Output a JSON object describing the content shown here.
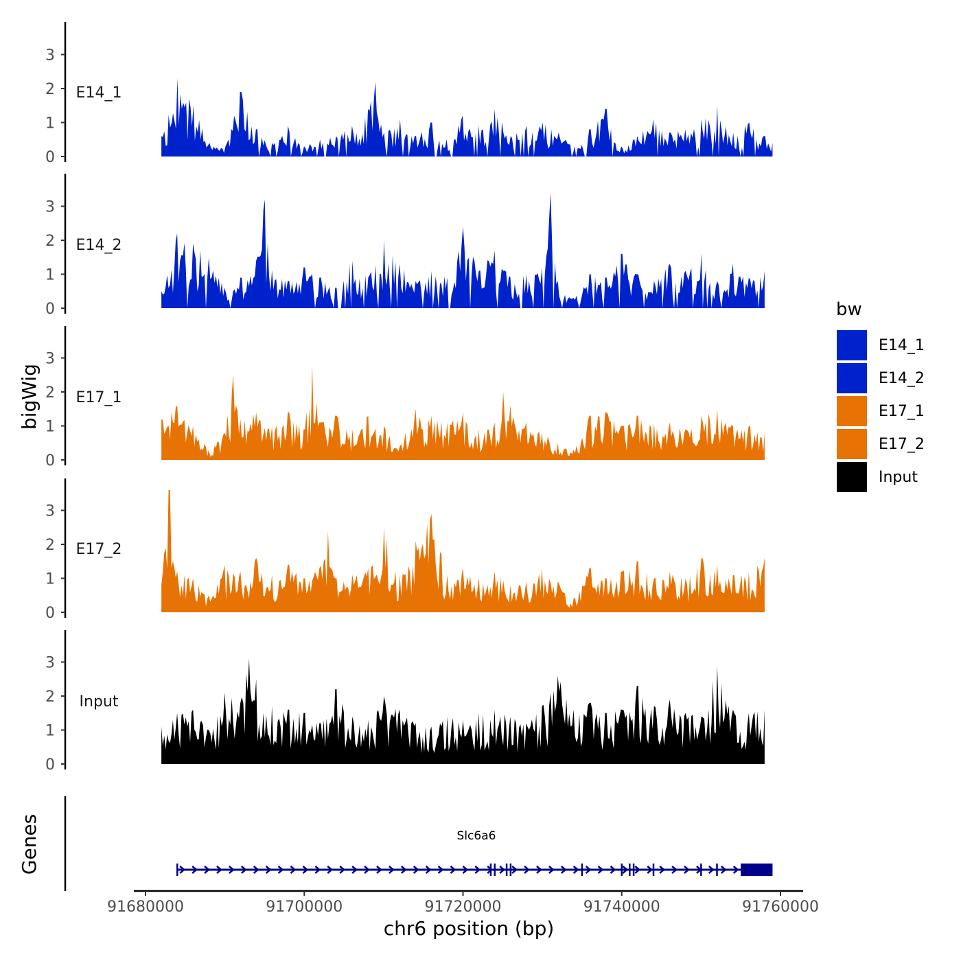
{
  "chart_data": {
    "type": "area",
    "title": "",
    "ylabel": "bigWig",
    "xlabel": "chr6 position (bp)",
    "xlim": [
      91682000,
      91759000
    ],
    "ylim": [
      0,
      4
    ],
    "x_ticks": [
      91680000,
      91700000,
      91720000,
      91740000,
      91760000
    ],
    "x_tick_labels": [
      "91680000",
      "91700000",
      "91720000",
      "91740000",
      "91760000"
    ],
    "y_ticks": [
      0,
      1,
      2,
      3
    ],
    "y_tick_labels": [
      "0",
      "1",
      "2",
      "3"
    ],
    "legend_title": "bw",
    "legend_position": "right",
    "series": [
      {
        "name": "E14_1",
        "color": "#0022CC",
        "x": [
          91682000,
          91684000,
          91686000,
          91688000,
          91690000,
          91692000,
          91694000,
          91696000,
          91698000,
          91700000,
          91702000,
          91704000,
          91706000,
          91708000,
          91709000,
          91710000,
          91712000,
          91714000,
          91716000,
          91718000,
          91720000,
          91722000,
          91724000,
          91726000,
          91728000,
          91730000,
          91732000,
          91734000,
          91736000,
          91738000,
          91740000,
          91742000,
          91744000,
          91746000,
          91748000,
          91750000,
          91752000,
          91754000,
          91756000,
          91758000,
          91759000
        ],
        "values": [
          0.6,
          2.3,
          1.5,
          0.4,
          0.3,
          1.9,
          0.8,
          0.4,
          0.9,
          0.3,
          0.5,
          0.6,
          0.9,
          1.4,
          2.2,
          0.7,
          1.1,
          0.6,
          1.0,
          0.5,
          1.2,
          0.9,
          1.4,
          0.6,
          0.9,
          1.0,
          0.7,
          0.3,
          0.8,
          1.4,
          0.3,
          0.6,
          1.1,
          0.7,
          0.8,
          1.1,
          1.5,
          0.7,
          1.0,
          0.6,
          0.4
        ]
      },
      {
        "name": "E14_2",
        "color": "#0022CC",
        "x": [
          91682000,
          91684000,
          91686000,
          91688000,
          91690000,
          91692000,
          91694000,
          91695000,
          91696000,
          91698000,
          91700000,
          91702000,
          91704000,
          91706000,
          91708000,
          91710000,
          91712000,
          91714000,
          91716000,
          91718000,
          91720000,
          91722000,
          91724000,
          91726000,
          91728000,
          91730000,
          91731000,
          91732000,
          91734000,
          91736000,
          91738000,
          91740000,
          91742000,
          91744000,
          91746000,
          91748000,
          91750000,
          91752000,
          91754000,
          91756000,
          91758000
        ],
        "values": [
          0.5,
          2.2,
          1.9,
          1.5,
          0.6,
          0.9,
          1.4,
          3.2,
          1.0,
          0.8,
          1.2,
          0.9,
          0.6,
          1.4,
          0.9,
          2.0,
          1.3,
          0.8,
          1.1,
          0.9,
          2.4,
          1.1,
          1.7,
          0.9,
          1.0,
          1.2,
          3.4,
          0.8,
          0.3,
          1.0,
          0.9,
          1.6,
          1.0,
          0.8,
          1.3,
          1.1,
          1.6,
          0.8,
          1.3,
          0.9,
          1.1
        ]
      },
      {
        "name": "E17_1",
        "color": "#E87305",
        "x": [
          91682000,
          91684000,
          91686000,
          91688000,
          91690000,
          91691000,
          91692000,
          91694000,
          91696000,
          91698000,
          91700000,
          91701000,
          91702000,
          91704000,
          91706000,
          91708000,
          91710000,
          91712000,
          91714000,
          91716000,
          91718000,
          91720000,
          91722000,
          91724000,
          91725000,
          91726000,
          91728000,
          91730000,
          91732000,
          91734000,
          91736000,
          91738000,
          91740000,
          91742000,
          91744000,
          91746000,
          91748000,
          91750000,
          91752000,
          91754000,
          91756000,
          91758000
        ],
        "values": [
          1.2,
          1.6,
          1.0,
          0.3,
          0.8,
          2.5,
          1.2,
          1.4,
          1.0,
          1.4,
          0.9,
          2.8,
          1.1,
          1.3,
          0.9,
          1.3,
          1.0,
          0.4,
          1.5,
          1.3,
          1.1,
          1.4,
          0.9,
          1.1,
          2.0,
          1.6,
          1.1,
          0.8,
          0.5,
          0.3,
          1.3,
          1.4,
          1.0,
          1.3,
          1.1,
          1.1,
          0.9,
          1.3,
          1.5,
          1.0,
          1.0,
          0.8
        ]
      },
      {
        "name": "E17_2",
        "color": "#E87305",
        "x": [
          91682000,
          91683000,
          91684000,
          91686000,
          91688000,
          91690000,
          91692000,
          91694000,
          91696000,
          91698000,
          91700000,
          91702000,
          91703000,
          91704000,
          91706000,
          91708000,
          91710000,
          91712000,
          91714000,
          91716000,
          91718000,
          91720000,
          91722000,
          91724000,
          91726000,
          91728000,
          91730000,
          91732000,
          91734000,
          91736000,
          91738000,
          91740000,
          91742000,
          91744000,
          91746000,
          91748000,
          91750000,
          91752000,
          91754000,
          91756000,
          91758000
        ],
        "values": [
          0.8,
          3.6,
          1.2,
          1.0,
          0.5,
          1.4,
          1.2,
          1.6,
          1.1,
          1.4,
          1.0,
          1.3,
          2.4,
          1.0,
          1.1,
          1.3,
          2.5,
          1.1,
          2.1,
          2.9,
          1.1,
          1.3,
          1.0,
          1.2,
          0.8,
          0.9,
          1.3,
          0.9,
          0.4,
          1.3,
          1.0,
          1.2,
          1.5,
          1.0,
          1.2,
          1.0,
          1.6,
          1.4,
          1.1,
          1.2,
          1.6
        ]
      },
      {
        "name": "Input",
        "color": "#000000",
        "x": [
          91682000,
          91684000,
          91686000,
          91688000,
          91690000,
          91692000,
          91693000,
          91694000,
          91696000,
          91698000,
          91700000,
          91702000,
          91704000,
          91706000,
          91708000,
          91710000,
          91712000,
          91714000,
          91716000,
          91718000,
          91720000,
          91722000,
          91724000,
          91726000,
          91728000,
          91730000,
          91732000,
          91734000,
          91736000,
          91738000,
          91740000,
          91742000,
          91744000,
          91746000,
          91748000,
          91750000,
          91752000,
          91754000,
          91756000,
          91758000
        ],
        "values": [
          1.1,
          1.5,
          1.6,
          1.0,
          2.1,
          1.8,
          3.1,
          2.5,
          1.7,
          1.6,
          1.5,
          1.2,
          2.2,
          1.4,
          1.3,
          2.0,
          1.6,
          1.2,
          1.1,
          1.4,
          1.3,
          1.5,
          1.6,
          1.4,
          1.2,
          1.7,
          2.6,
          1.6,
          1.8,
          1.5,
          1.6,
          2.3,
          1.7,
          1.9,
          1.5,
          1.4,
          2.9,
          1.6,
          1.5,
          1.6
        ]
      }
    ],
    "genes_track": {
      "label": "Genes",
      "gene_name": "Slc6a6",
      "color": "#00008B",
      "start": 91684000,
      "end": 91759000,
      "strand": "+",
      "exons": [
        91684000,
        91723500,
        91724000,
        91725500,
        91726000,
        91735000,
        91740000,
        91741000,
        91741500,
        91744000,
        91750000,
        91752000
      ],
      "utr_block": [
        91755000,
        91759000
      ]
    }
  }
}
